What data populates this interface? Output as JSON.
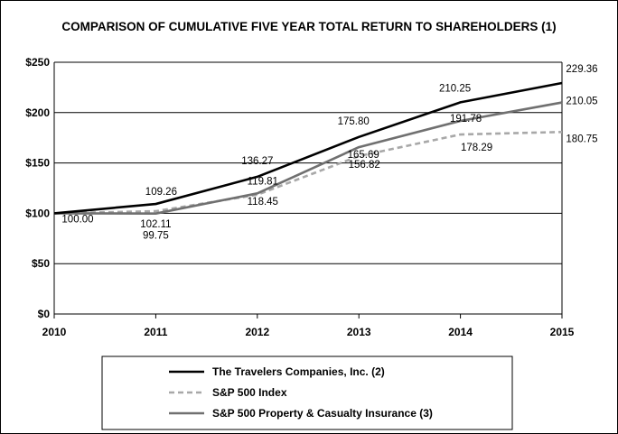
{
  "chart_data": {
    "type": "line",
    "title": "COMPARISON OF CUMULATIVE FIVE YEAR TOTAL RETURN TO SHAREHOLDERS (1)",
    "x": [
      "2010",
      "2011",
      "2012",
      "2013",
      "2014",
      "2015"
    ],
    "ylim": [
      0,
      250
    ],
    "yticks": [
      0,
      50,
      100,
      150,
      200,
      250
    ],
    "ytick_labels": [
      "$0",
      "$50",
      "$100",
      "$150",
      "$200",
      "$250"
    ],
    "grid": true,
    "legend_position": "bottom",
    "series": [
      {
        "name": "The Travelers Companies, Inc. (2)",
        "values": [
          100,
          109.26,
          136.27,
          175.8,
          210.25,
          229.36
        ],
        "labels": [
          "100.00",
          "109.26",
          "136.27",
          "175.80",
          "210.25",
          "229.36"
        ],
        "color": "#000000",
        "style": "solid"
      },
      {
        "name": "S&P 500 Index",
        "values": [
          100,
          102.11,
          118.45,
          156.82,
          178.29,
          180.75
        ],
        "labels": [
          "",
          "102.11",
          "118.45",
          "156.82",
          "178.29",
          "180.75"
        ],
        "color": "#a8a8a8",
        "style": "dashed"
      },
      {
        "name": "S&P 500 Property & Casualty Insurance (3)",
        "values": [
          100,
          99.75,
          119.81,
          165.69,
          191.78,
          210.05
        ],
        "labels": [
          "",
          "99.75",
          "119.81",
          "165.69",
          "191.78",
          "210.05"
        ],
        "color": "#707070",
        "style": "solid"
      }
    ]
  }
}
